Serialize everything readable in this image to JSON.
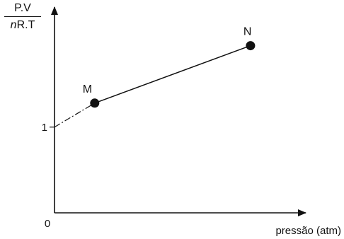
{
  "chart_data": {
    "type": "line",
    "title": "",
    "ylabel": {
      "numerator": "P.V",
      "denominator_n": "n",
      "denominator_rest": "R.T"
    },
    "xlabel": "pressão (atm)",
    "origin_label": "0",
    "y_tick_label": "1",
    "y_tick_value": 1,
    "xlim": [
      0,
      10
    ],
    "ylim": [
      0,
      2.4
    ],
    "intercept": {
      "x": 0,
      "y": 1
    },
    "points": [
      {
        "label": "M",
        "x": 1.6,
        "y": 1.28
      },
      {
        "label": "N",
        "x": 7.8,
        "y": 1.95
      }
    ],
    "extrapolation_style": "dash-dot",
    "grid": false,
    "colors": {
      "axis": "#111111",
      "line": "#111111",
      "marker": "#111111"
    }
  }
}
